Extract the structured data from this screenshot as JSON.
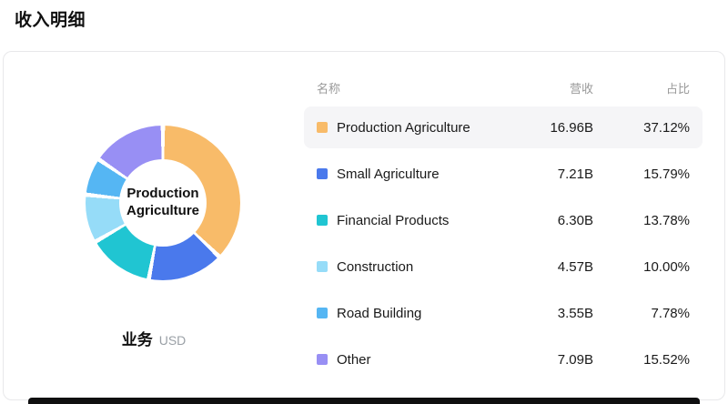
{
  "page": {
    "title": "收入明细"
  },
  "chart": {
    "center_label": "Production Agriculture",
    "footer_label": "业务",
    "footer_unit": "USD"
  },
  "table": {
    "headers": {
      "name": "名称",
      "revenue": "营收",
      "share": "占比"
    },
    "rows": [
      {
        "name": "Production Agriculture",
        "revenue": "16.96B",
        "share": "37.12%",
        "color": "#F8BB69",
        "highlighted": true
      },
      {
        "name": "Small Agriculture",
        "revenue": "7.21B",
        "share": "15.79%",
        "color": "#4A79EC",
        "highlighted": false
      },
      {
        "name": "Financial Products",
        "revenue": "6.30B",
        "share": "13.78%",
        "color": "#20C5D2",
        "highlighted": false
      },
      {
        "name": "Construction",
        "revenue": "4.57B",
        "share": "10.00%",
        "color": "#96DCF8",
        "highlighted": false
      },
      {
        "name": "Road Building",
        "revenue": "3.55B",
        "share": "7.78%",
        "color": "#55B6F3",
        "highlighted": false
      },
      {
        "name": "Other",
        "revenue": "7.09B",
        "share": "15.52%",
        "color": "#988FF4",
        "highlighted": false
      }
    ]
  },
  "chart_data": {
    "type": "pie",
    "donut": true,
    "title": "收入明细",
    "unit": "USD",
    "center_label": "Production Agriculture",
    "series_label": "业务",
    "categories": [
      "Production Agriculture",
      "Small Agriculture",
      "Financial Products",
      "Construction",
      "Road Building",
      "Other"
    ],
    "values": [
      37.12,
      15.79,
      13.78,
      10.0,
      7.78,
      15.52
    ],
    "revenues": [
      "16.96B",
      "7.21B",
      "6.30B",
      "4.57B",
      "3.55B",
      "7.09B"
    ],
    "colors": [
      "#F8BB69",
      "#4A79EC",
      "#20C5D2",
      "#96DCF8",
      "#55B6F3",
      "#988FF4"
    ],
    "legend_position": "right-table",
    "start_angle_deg": 0,
    "direction": "clockwise"
  }
}
